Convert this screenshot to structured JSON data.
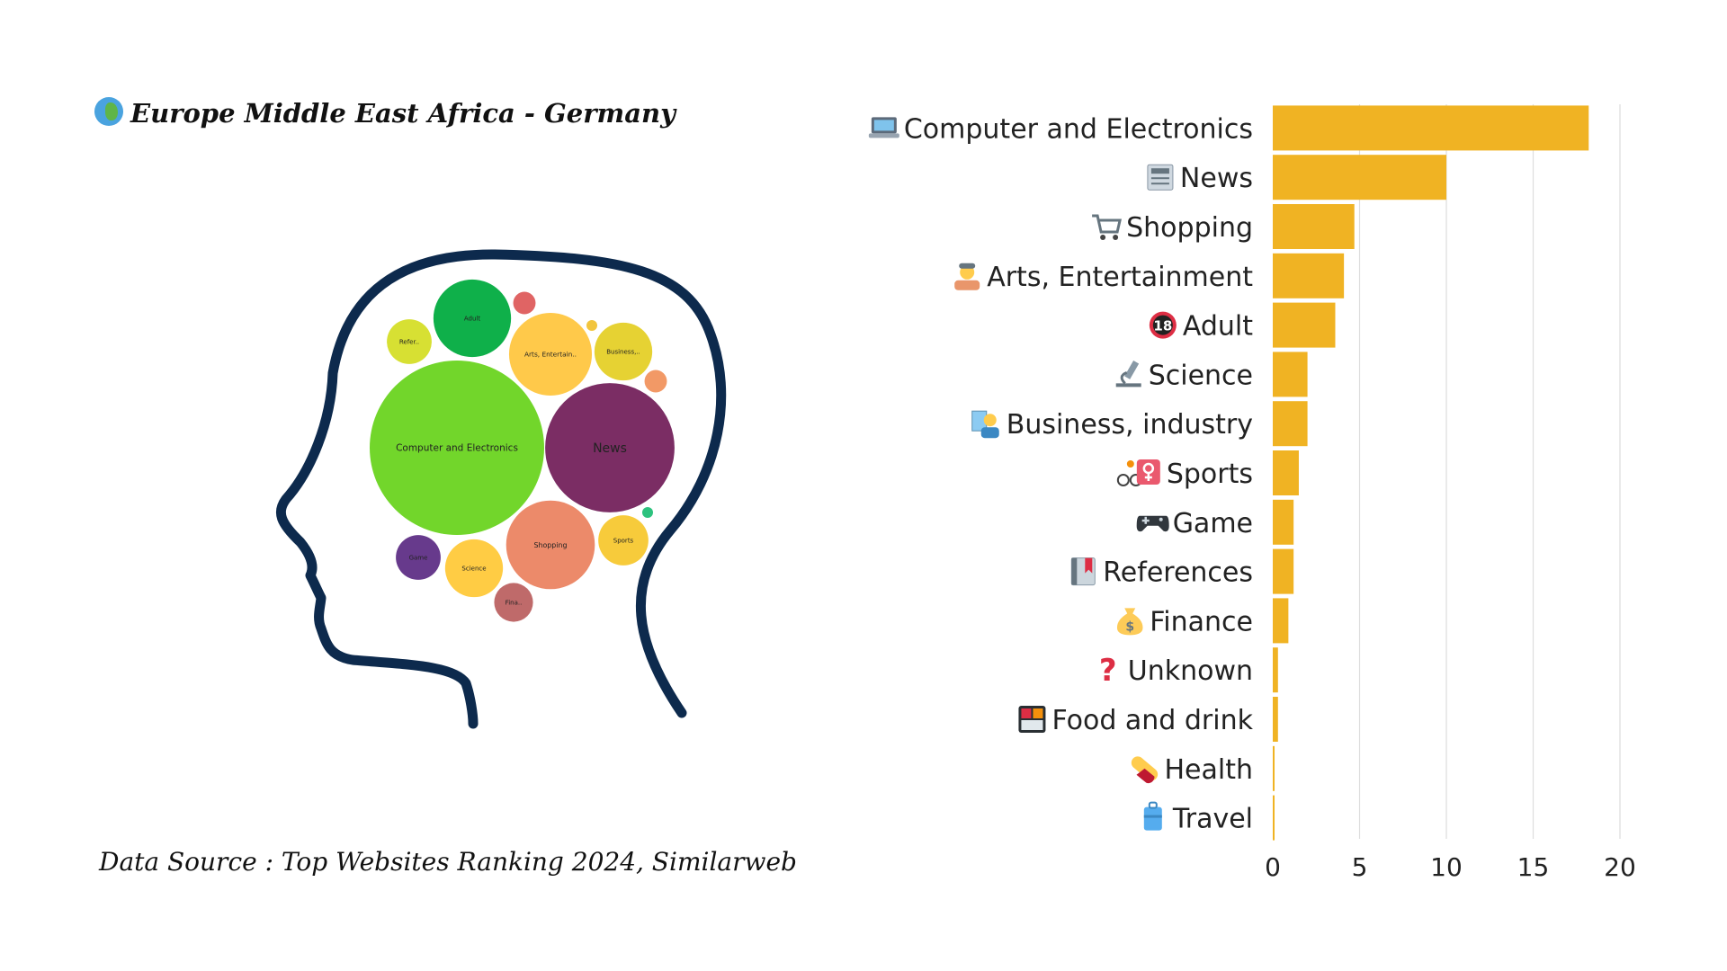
{
  "header": {
    "title": "Europe Middle East Africa - Germany",
    "title_icon": "globe-africa-icon"
  },
  "footer": {
    "source": "Data Source : Top Websites Ranking 2024, Similarweb"
  },
  "colors": {
    "bar": "#F0B323",
    "head_outline": "#0D2A4D",
    "grid": "#DDDDDD"
  },
  "chart_data": [
    {
      "type": "bubble",
      "title": "",
      "bubbles": [
        {
          "label": "Computer and Electronics",
          "icon": "laptop-icon",
          "value": 18.2,
          "color": "#72D62B"
        },
        {
          "label": "News",
          "icon": "newspaper-icon",
          "value": 10.0,
          "color": "#7B2D64"
        },
        {
          "label": "Shopping",
          "icon": "cart-icon",
          "value": 4.7,
          "color": "#EC8A6A"
        },
        {
          "label": "Arts, Entertain..",
          "icon": "artist-icon",
          "value": 4.1,
          "color": "#FFC94A"
        },
        {
          "label": "Adult",
          "icon": "adult-18-icon",
          "value": 3.6,
          "color": "#0FB04A"
        },
        {
          "label": "Science",
          "icon": "microscope-icon",
          "value": 2.0,
          "color": "#FFCC44"
        },
        {
          "label": "Business,..",
          "icon": "businessperson-icon",
          "value": 2.0,
          "color": "#E6D233"
        },
        {
          "label": "Sports",
          "icon": "cyclist-icon",
          "value": 1.5,
          "color": "#F7CB3B"
        },
        {
          "label": "Game",
          "icon": "gamepad-icon",
          "value": 1.2,
          "color": "#673A8C"
        },
        {
          "label": "Refer..",
          "icon": "book-icon",
          "value": 1.2,
          "color": "#D7E033"
        },
        {
          "label": "Fina..",
          "icon": "moneybag-icon",
          "value": 0.9,
          "color": "#BF6A6A"
        },
        {
          "label": "",
          "icon": "unknown-icon",
          "value": 0.3,
          "color": "#E06464"
        },
        {
          "label": "",
          "icon": "food-icon",
          "value": 0.3,
          "color": "#F29966"
        },
        {
          "label": "",
          "icon": "health-icon",
          "value": 0.05,
          "color": "#2DC27E"
        },
        {
          "label": "",
          "icon": "travel-icon",
          "value": 0.05,
          "color": "#F2C53D"
        }
      ]
    },
    {
      "type": "bar",
      "orientation": "horizontal",
      "title": "",
      "xlabel": "",
      "ylabel": "",
      "xlim": [
        0,
        20
      ],
      "xticks": [
        0,
        5,
        10,
        15,
        20
      ],
      "grid": true,
      "categories": [
        "Computer and Electronics",
        "News",
        "Shopping",
        "Arts, Entertainment",
        "Adult",
        "Science",
        "Business, industry",
        "Sports",
        "Game",
        "References",
        "Finance",
        "Unknown",
        "Food and drink",
        "Health",
        "Travel"
      ],
      "icons": [
        "laptop-icon",
        "newspaper-icon",
        "cart-icon",
        "artist-icon",
        "adult-18-icon",
        "microscope-icon",
        "businessperson-icon",
        "cyclist-icon",
        "gamepad-icon",
        "book-icon",
        "moneybag-icon",
        "question-icon",
        "bento-icon",
        "pill-icon",
        "luggage-icon"
      ],
      "values": [
        18.2,
        10.0,
        4.7,
        4.1,
        3.6,
        2.0,
        2.0,
        1.5,
        1.2,
        1.2,
        0.9,
        0.3,
        0.3,
        0.05,
        0.05
      ]
    }
  ]
}
